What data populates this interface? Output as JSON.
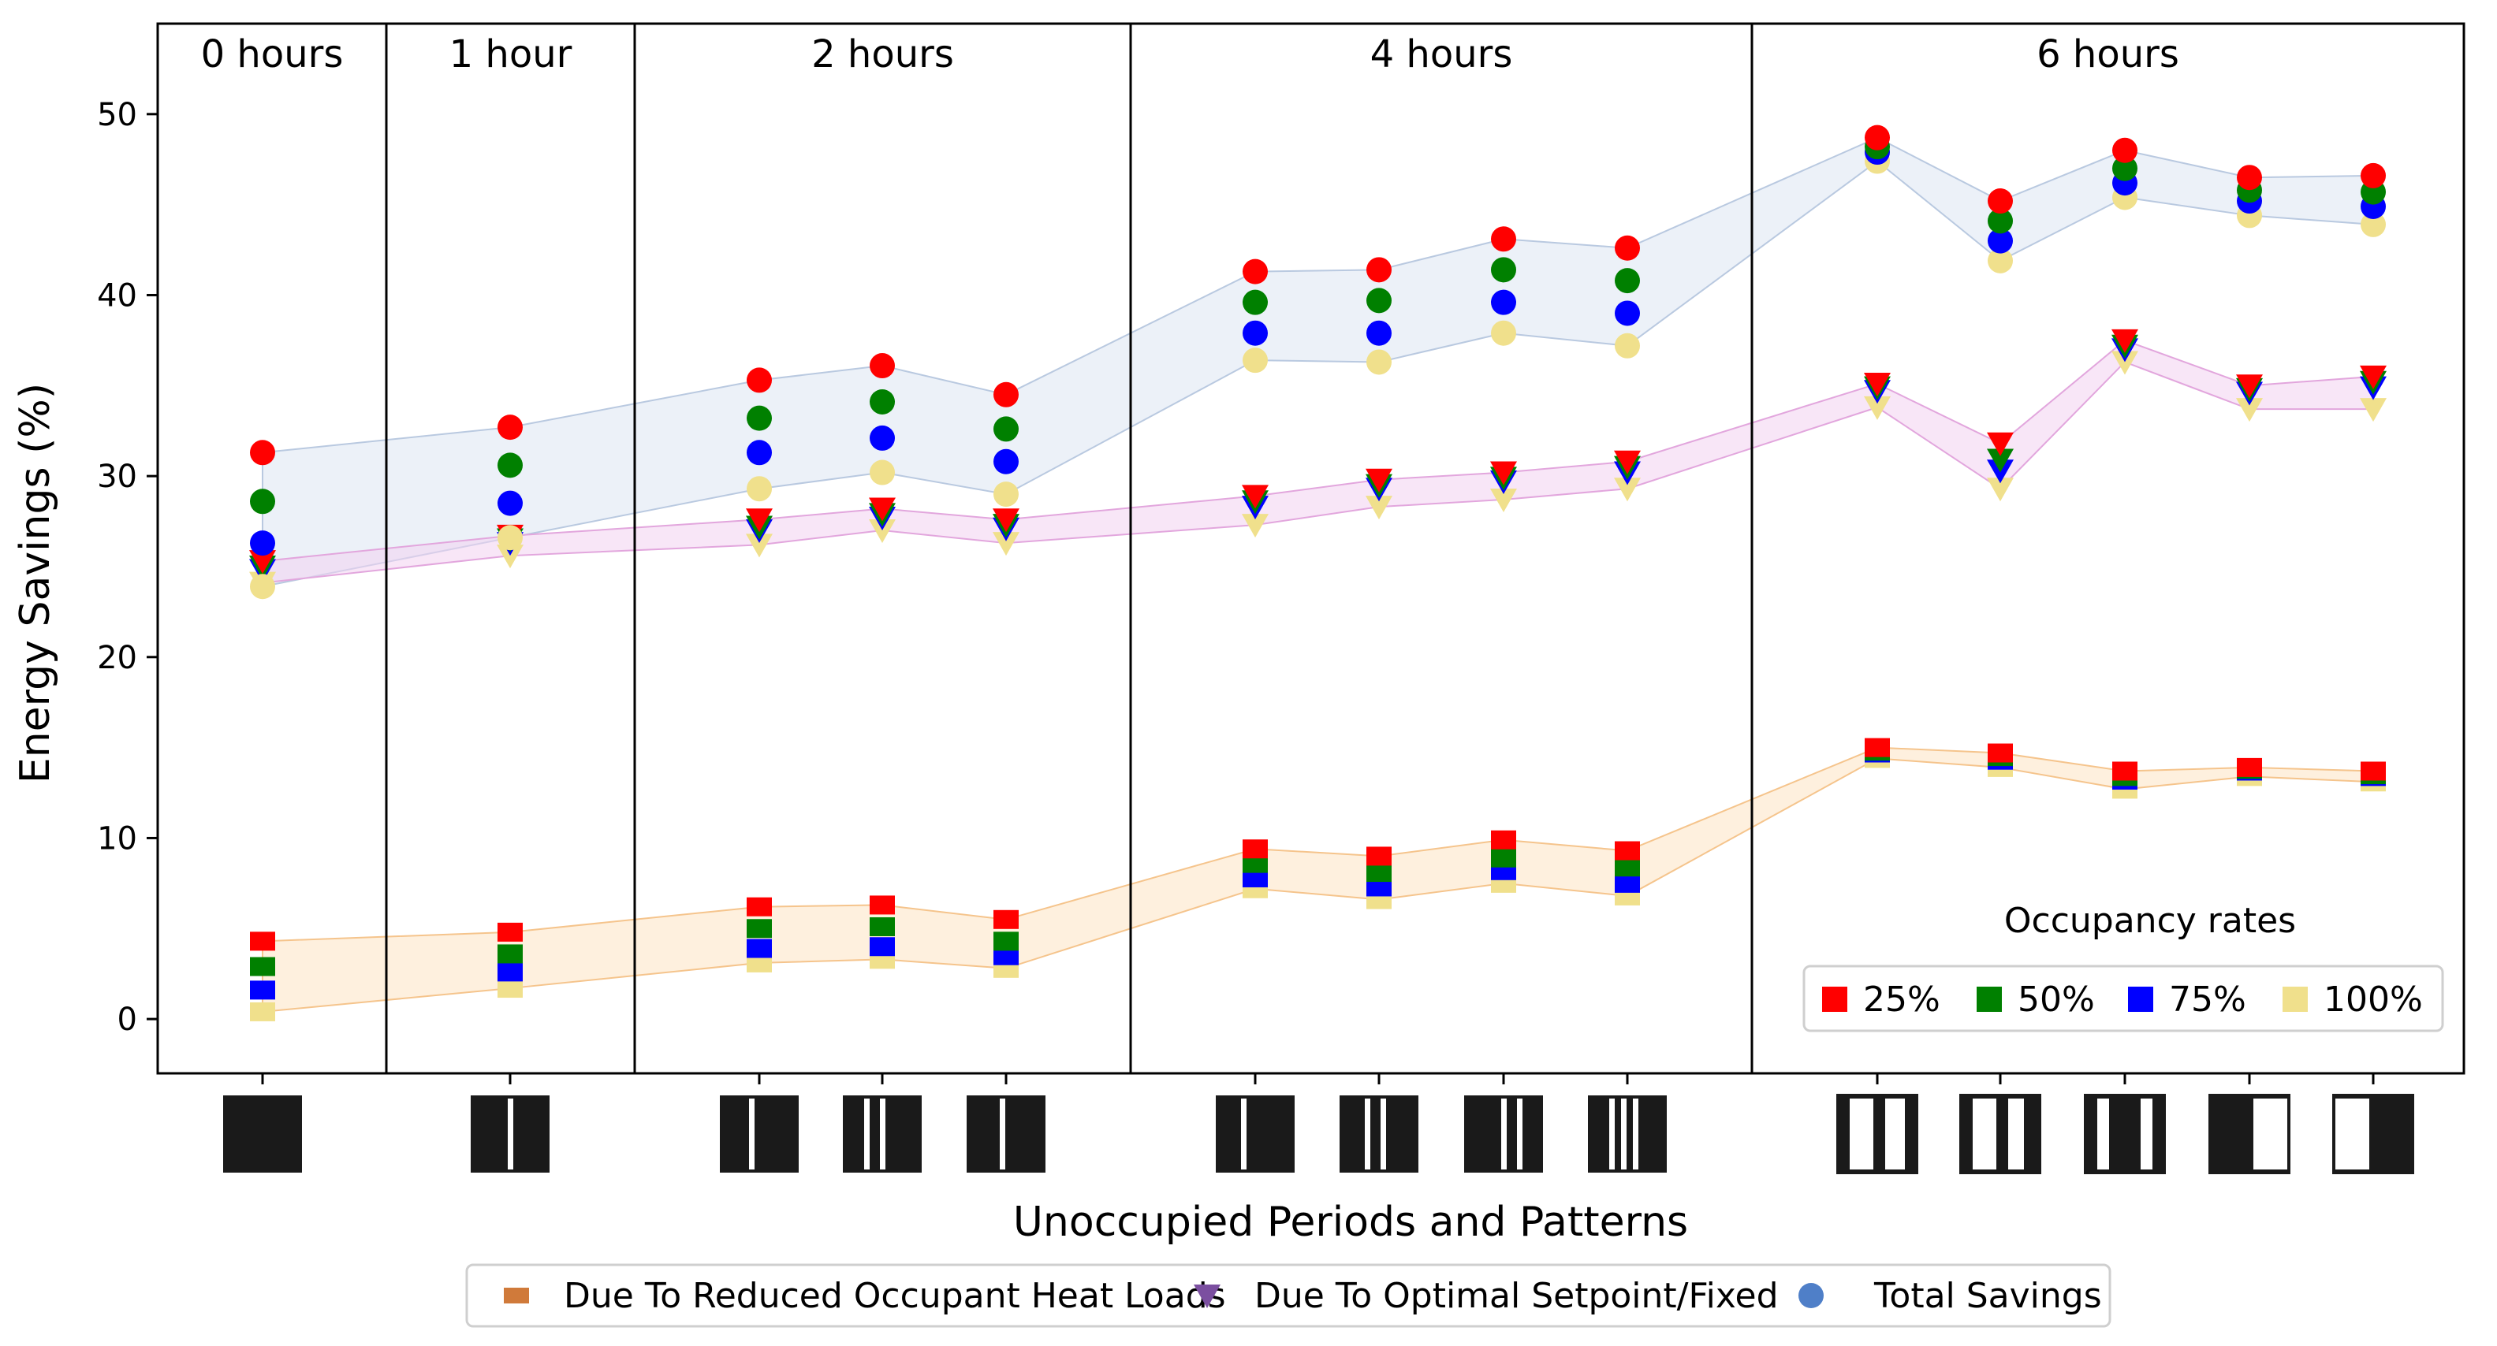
{
  "chart_data": {
    "type": "scatter",
    "title": "",
    "xlabel": "Unoccupied Periods and Patterns",
    "ylabel": "Energy Savings (%)",
    "ylim": [
      -3,
      55
    ],
    "yticks": [
      0,
      10,
      20,
      30,
      40,
      50
    ],
    "grid": false,
    "groups": [
      {
        "label": "0 hours",
        "count": 1
      },
      {
        "label": "1 hour",
        "count": 1
      },
      {
        "label": "2 hours",
        "count": 3
      },
      {
        "label": "4 hours",
        "count": 4
      },
      {
        "label": "6 hours",
        "count": 5
      }
    ],
    "occupancy_legend": {
      "title": "Occupancy rates",
      "placement": "lower-right",
      "entries": [
        {
          "label": "25%",
          "color": "#ff0000"
        },
        {
          "label": "50%",
          "color": "#008000"
        },
        {
          "label": "75%",
          "color": "#0000ff"
        },
        {
          "label": "100%",
          "color": "#f0e08c"
        }
      ]
    },
    "category_legend": {
      "placement": "bottom",
      "entries": [
        {
          "label": "Due To Reduced Occupant Heat Loads",
          "marker": "square",
          "color": "#d07a3a"
        },
        {
          "label": "Due To Optimal Setpoint/Fixed",
          "marker": "triangle",
          "color": "#7b4fa0"
        },
        {
          "label": "Total Savings",
          "marker": "circle",
          "color": "#4f7fc8"
        }
      ]
    },
    "series": [
      {
        "category": "Total Savings",
        "occupancy": "25%",
        "values": [
          31.3,
          32.7,
          35.3,
          36.1,
          34.5,
          41.3,
          41.4,
          43.1,
          42.6,
          48.7,
          45.2,
          48.0,
          46.5,
          46.6
        ]
      },
      {
        "category": "Total Savings",
        "occupancy": "50%",
        "values": [
          28.6,
          30.6,
          33.2,
          34.1,
          32.6,
          39.6,
          39.7,
          41.4,
          40.8,
          48.2,
          44.1,
          47.0,
          45.8,
          45.7
        ]
      },
      {
        "category": "Total Savings",
        "occupancy": "75%",
        "values": [
          26.3,
          28.5,
          31.3,
          32.1,
          30.8,
          37.9,
          37.9,
          39.6,
          39.0,
          47.9,
          43.0,
          46.2,
          45.2,
          44.9
        ]
      },
      {
        "category": "Total Savings",
        "occupancy": "100%",
        "values": [
          23.9,
          26.6,
          29.3,
          30.2,
          29.0,
          36.4,
          36.3,
          37.9,
          37.2,
          47.4,
          41.9,
          45.4,
          44.4,
          43.9
        ]
      },
      {
        "category": "Due To Optimal Setpoint/Fixed",
        "occupancy": "25%",
        "values": [
          25.3,
          26.7,
          27.6,
          28.2,
          27.6,
          28.9,
          29.8,
          30.2,
          30.8,
          35.1,
          31.8,
          37.5,
          35.0,
          35.5
        ]
      },
      {
        "category": "Due To Optimal Setpoint/Fixed",
        "occupancy": "50%",
        "values": [
          25.0,
          26.5,
          27.2,
          27.9,
          27.3,
          28.6,
          29.5,
          29.9,
          30.5,
          34.9,
          30.9,
          37.2,
          34.8,
          35.2
        ]
      },
      {
        "category": "Due To Optimal Setpoint/Fixed",
        "occupancy": "75%",
        "values": [
          24.8,
          26.3,
          27.0,
          27.7,
          27.1,
          28.3,
          29.3,
          29.7,
          30.2,
          34.7,
          30.3,
          37.0,
          34.6,
          34.9
        ]
      },
      {
        "category": "Due To Optimal Setpoint/Fixed",
        "occupancy": "100%",
        "values": [
          24.1,
          25.6,
          26.2,
          27.0,
          26.3,
          27.3,
          28.3,
          28.7,
          29.3,
          33.8,
          29.3,
          36.3,
          33.7,
          33.7
        ]
      },
      {
        "category": "Due To Reduced Occupant Heat Loads",
        "occupancy": "25%",
        "values": [
          4.3,
          4.8,
          6.2,
          6.3,
          5.5,
          9.4,
          9.0,
          9.9,
          9.3,
          15.0,
          14.7,
          13.7,
          13.9,
          13.7
        ]
      },
      {
        "category": "Due To Reduced Occupant Heat Loads",
        "occupancy": "50%",
        "values": [
          2.9,
          3.6,
          5.0,
          5.1,
          4.3,
          8.6,
          8.1,
          8.9,
          8.4,
          14.8,
          14.5,
          13.4,
          13.8,
          13.5
        ]
      },
      {
        "category": "Due To Reduced Occupant Heat Loads",
        "occupancy": "75%",
        "values": [
          1.6,
          2.6,
          3.9,
          4.0,
          3.5,
          7.8,
          7.3,
          8.2,
          7.5,
          14.7,
          14.3,
          13.2,
          13.7,
          13.4
        ]
      },
      {
        "category": "Due To Reduced Occupant Heat Loads",
        "occupancy": "100%",
        "values": [
          0.4,
          1.7,
          3.1,
          3.3,
          2.8,
          7.2,
          6.6,
          7.5,
          6.8,
          14.4,
          13.9,
          12.7,
          13.4,
          13.1
        ]
      }
    ]
  }
}
